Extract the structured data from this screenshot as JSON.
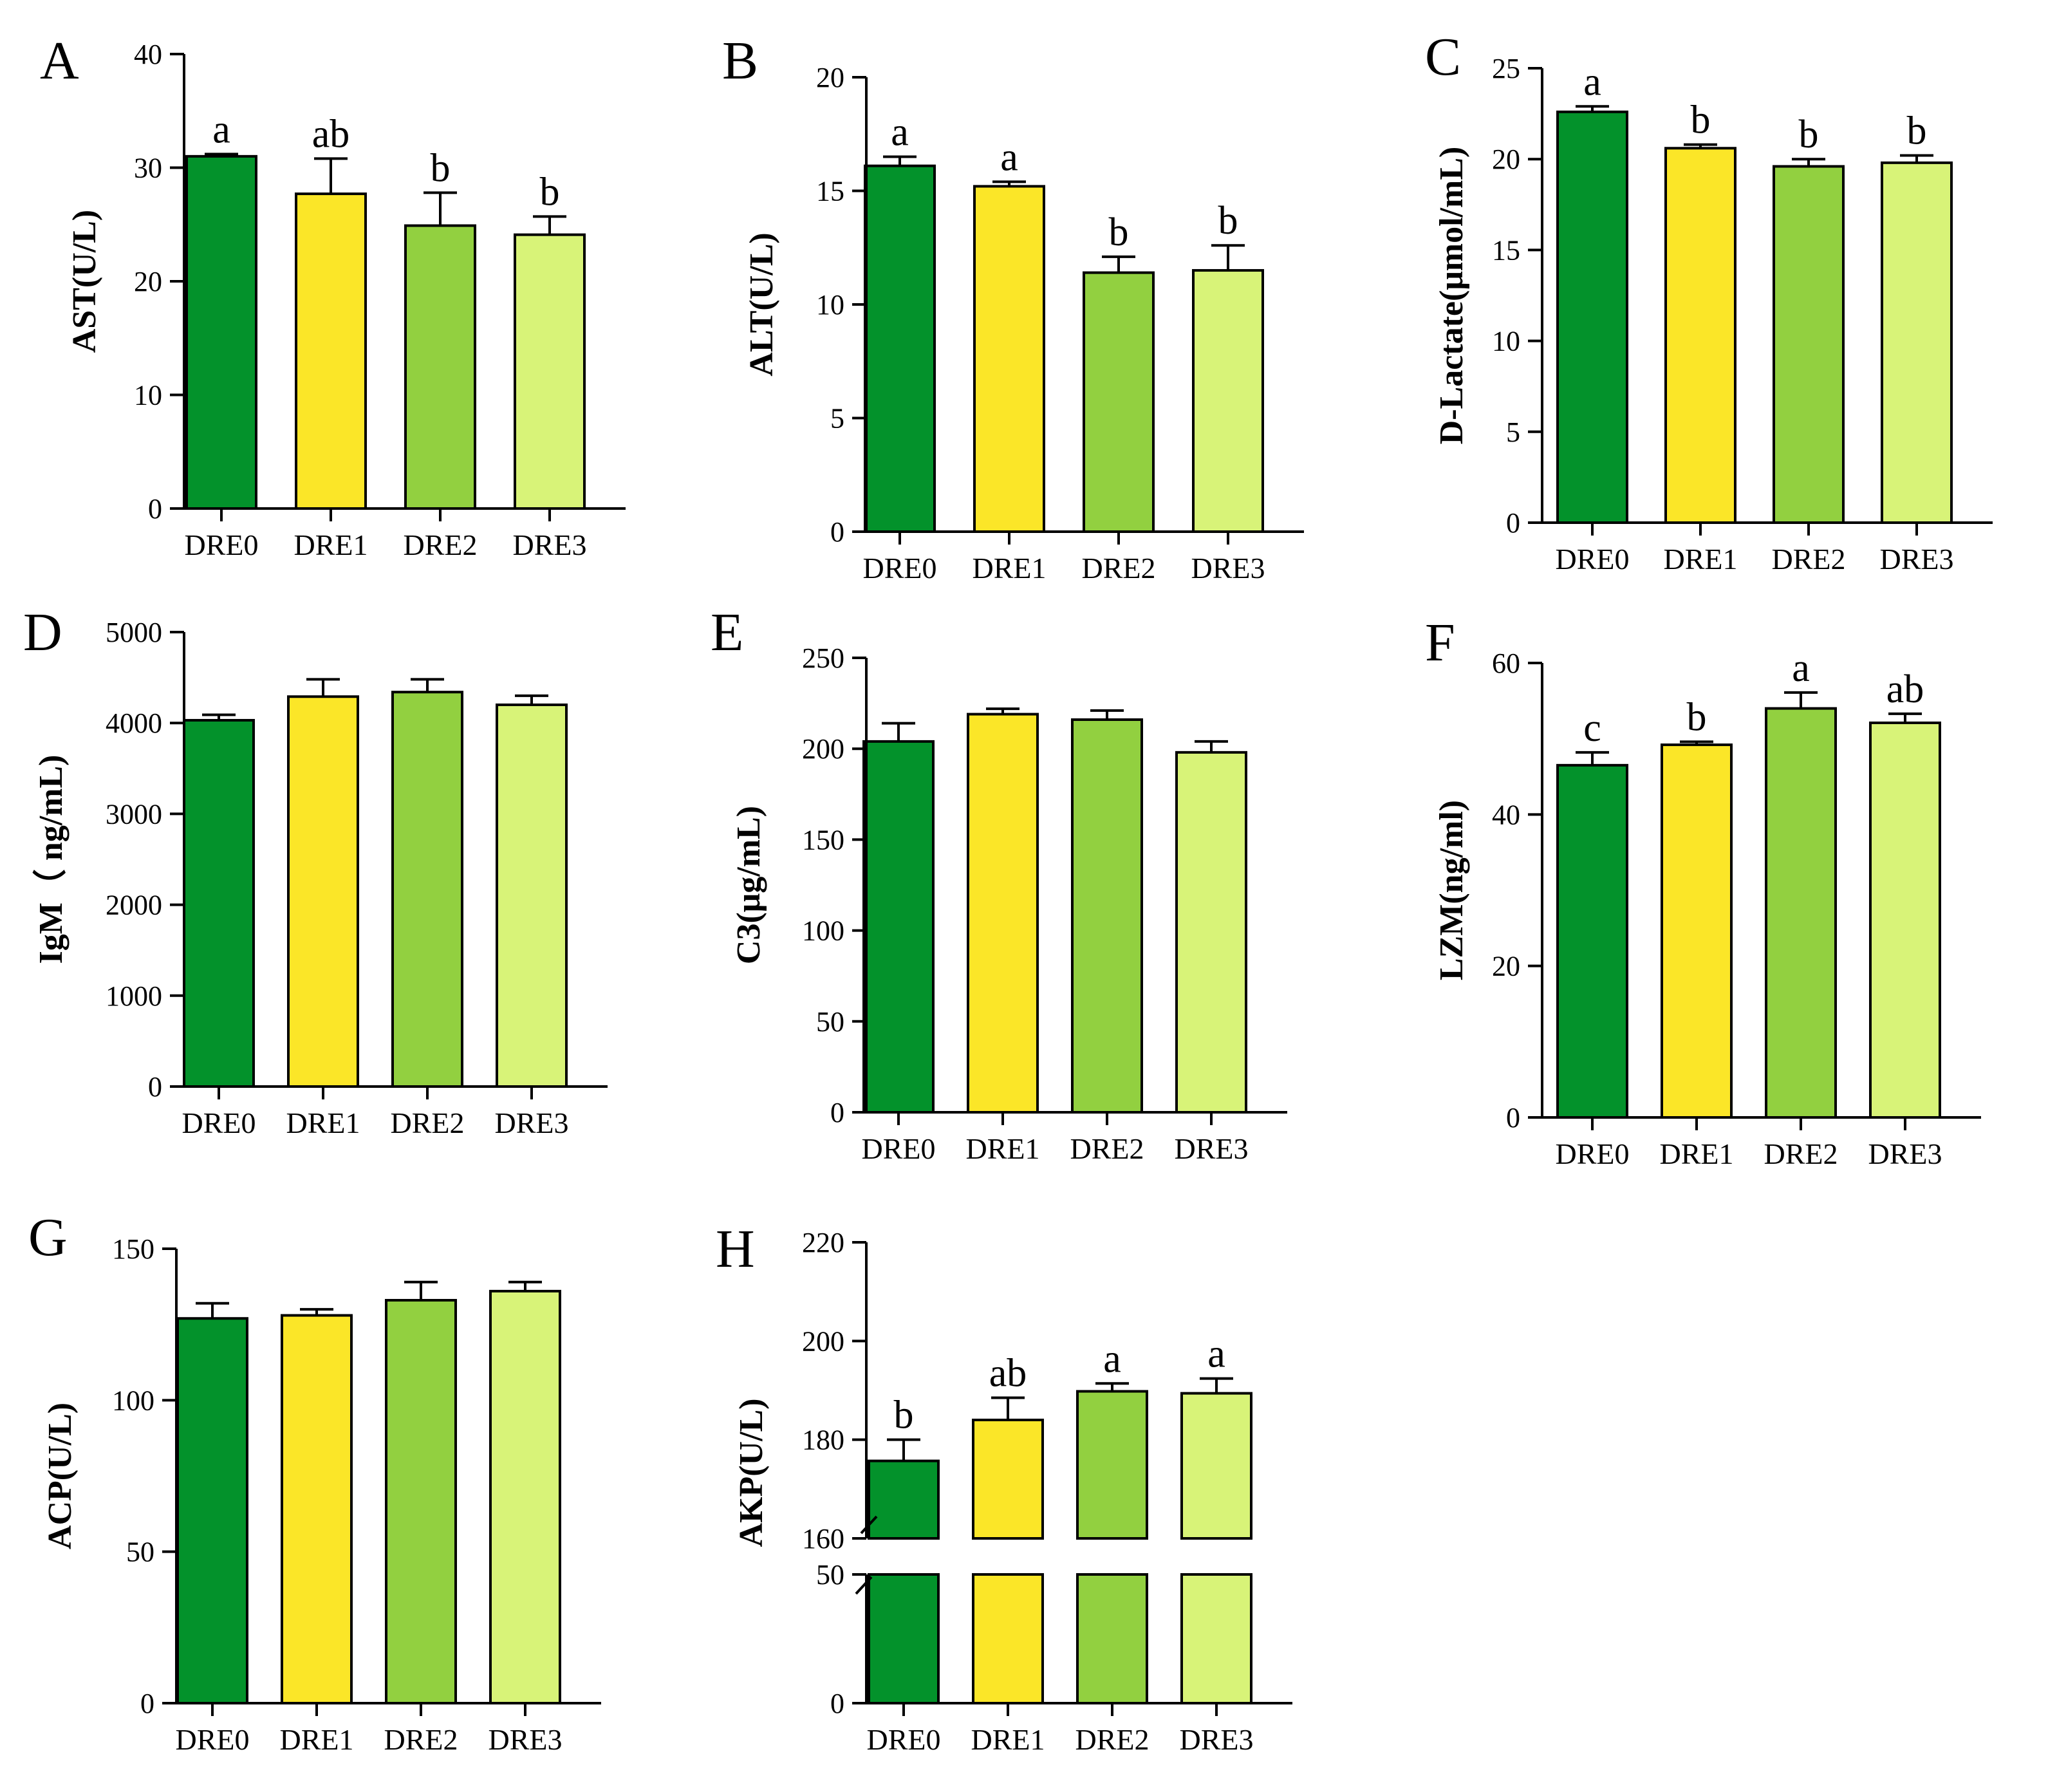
{
  "chart_data": [
    {
      "panel": "A",
      "type": "bar",
      "categories": [
        "DRE0",
        "DRE1",
        "DRE2",
        "DRE3"
      ],
      "values": [
        31.0,
        27.7,
        24.9,
        24.1
      ],
      "errors": [
        0.2,
        3.1,
        2.9,
        1.6
      ],
      "letters": [
        "a",
        "ab",
        "b",
        "b"
      ],
      "ylabel": "AST(U/L)",
      "ylim": [
        0,
        40
      ],
      "yticks": [
        0,
        10,
        20,
        30,
        40
      ]
    },
    {
      "panel": "B",
      "type": "bar",
      "categories": [
        "DRE0",
        "DRE1",
        "DRE2",
        "DRE3"
      ],
      "values": [
        16.1,
        15.2,
        11.4,
        11.5
      ],
      "errors": [
        0.4,
        0.2,
        0.7,
        1.1
      ],
      "letters": [
        "a",
        "a",
        "b",
        "b"
      ],
      "ylabel": "ALT(U/L)",
      "ylim": [
        0,
        20
      ],
      "yticks": [
        0,
        5,
        10,
        15,
        20
      ]
    },
    {
      "panel": "C",
      "type": "bar",
      "categories": [
        "DRE0",
        "DRE1",
        "DRE2",
        "DRE3"
      ],
      "values": [
        22.6,
        20.6,
        19.6,
        19.8
      ],
      "errors": [
        0.3,
        0.2,
        0.4,
        0.4
      ],
      "letters": [
        "a",
        "b",
        "b",
        "b"
      ],
      "ylabel": "D-Lactate(μmol/mL)",
      "ylim": [
        0,
        25
      ],
      "yticks": [
        0,
        5,
        10,
        15,
        20,
        25
      ]
    },
    {
      "panel": "D",
      "type": "bar",
      "categories": [
        "DRE0",
        "DRE1",
        "DRE2",
        "DRE3"
      ],
      "values": [
        4030,
        4290,
        4340,
        4200
      ],
      "errors": [
        60,
        190,
        140,
        100
      ],
      "letters": [
        "",
        "",
        "",
        ""
      ],
      "ylabel": "IgM（ ng/mL)",
      "ylim": [
        0,
        5000
      ],
      "yticks": [
        0,
        1000,
        2000,
        3000,
        4000,
        5000
      ]
    },
    {
      "panel": "E",
      "type": "bar",
      "categories": [
        "DRE0",
        "DRE1",
        "DRE2",
        "DRE3"
      ],
      "values": [
        204,
        219,
        216,
        198
      ],
      "errors": [
        10,
        3,
        5,
        6
      ],
      "letters": [
        "",
        "",
        "",
        ""
      ],
      "ylabel": "C3(μg/mL)",
      "ylim": [
        0,
        250
      ],
      "yticks": [
        0,
        50,
        100,
        150,
        200,
        250
      ]
    },
    {
      "panel": "F",
      "type": "bar",
      "categories": [
        "DRE0",
        "DRE1",
        "DRE2",
        "DRE3"
      ],
      "values": [
        46.5,
        49.2,
        54.0,
        52.1
      ],
      "errors": [
        1.7,
        0.4,
        2.1,
        1.2
      ],
      "letters": [
        "c",
        "b",
        "a",
        "ab"
      ],
      "ylabel": "LZM(ng/ml)",
      "ylim": [
        0,
        60
      ],
      "yticks": [
        0,
        20,
        40,
        60
      ]
    },
    {
      "panel": "G",
      "type": "bar",
      "categories": [
        "DRE0",
        "DRE1",
        "DRE2",
        "DRE3"
      ],
      "values": [
        127,
        128,
        133,
        136
      ],
      "errors": [
        5,
        2,
        6,
        3
      ],
      "letters": [
        "",
        "",
        "",
        ""
      ],
      "ylabel": "ACP(U/L)",
      "ylim": [
        0,
        150
      ],
      "yticks": [
        0,
        50,
        100,
        150
      ]
    },
    {
      "panel": "H",
      "type": "bar",
      "categories": [
        "DRE0",
        "DRE1",
        "DRE2",
        "DRE3"
      ],
      "values": [
        175.7,
        184.0,
        189.8,
        189.4
      ],
      "errors": [
        4.3,
        4.5,
        1.6,
        3.0
      ],
      "letters": [
        "b",
        "ab",
        "a",
        "a"
      ],
      "ylabel": "AKP(U/L)",
      "ylim": [
        0,
        220
      ],
      "yticks": [
        0,
        50,
        160,
        180,
        200,
        220
      ],
      "broken_axis": {
        "lower_range": [
          0,
          50
        ],
        "upper_range": [
          160,
          220
        ]
      }
    }
  ],
  "colors": {
    "DRE0": "#03922b",
    "DRE1": "#fbe628",
    "DRE2": "#92d040",
    "DRE3": "#d8f378"
  }
}
